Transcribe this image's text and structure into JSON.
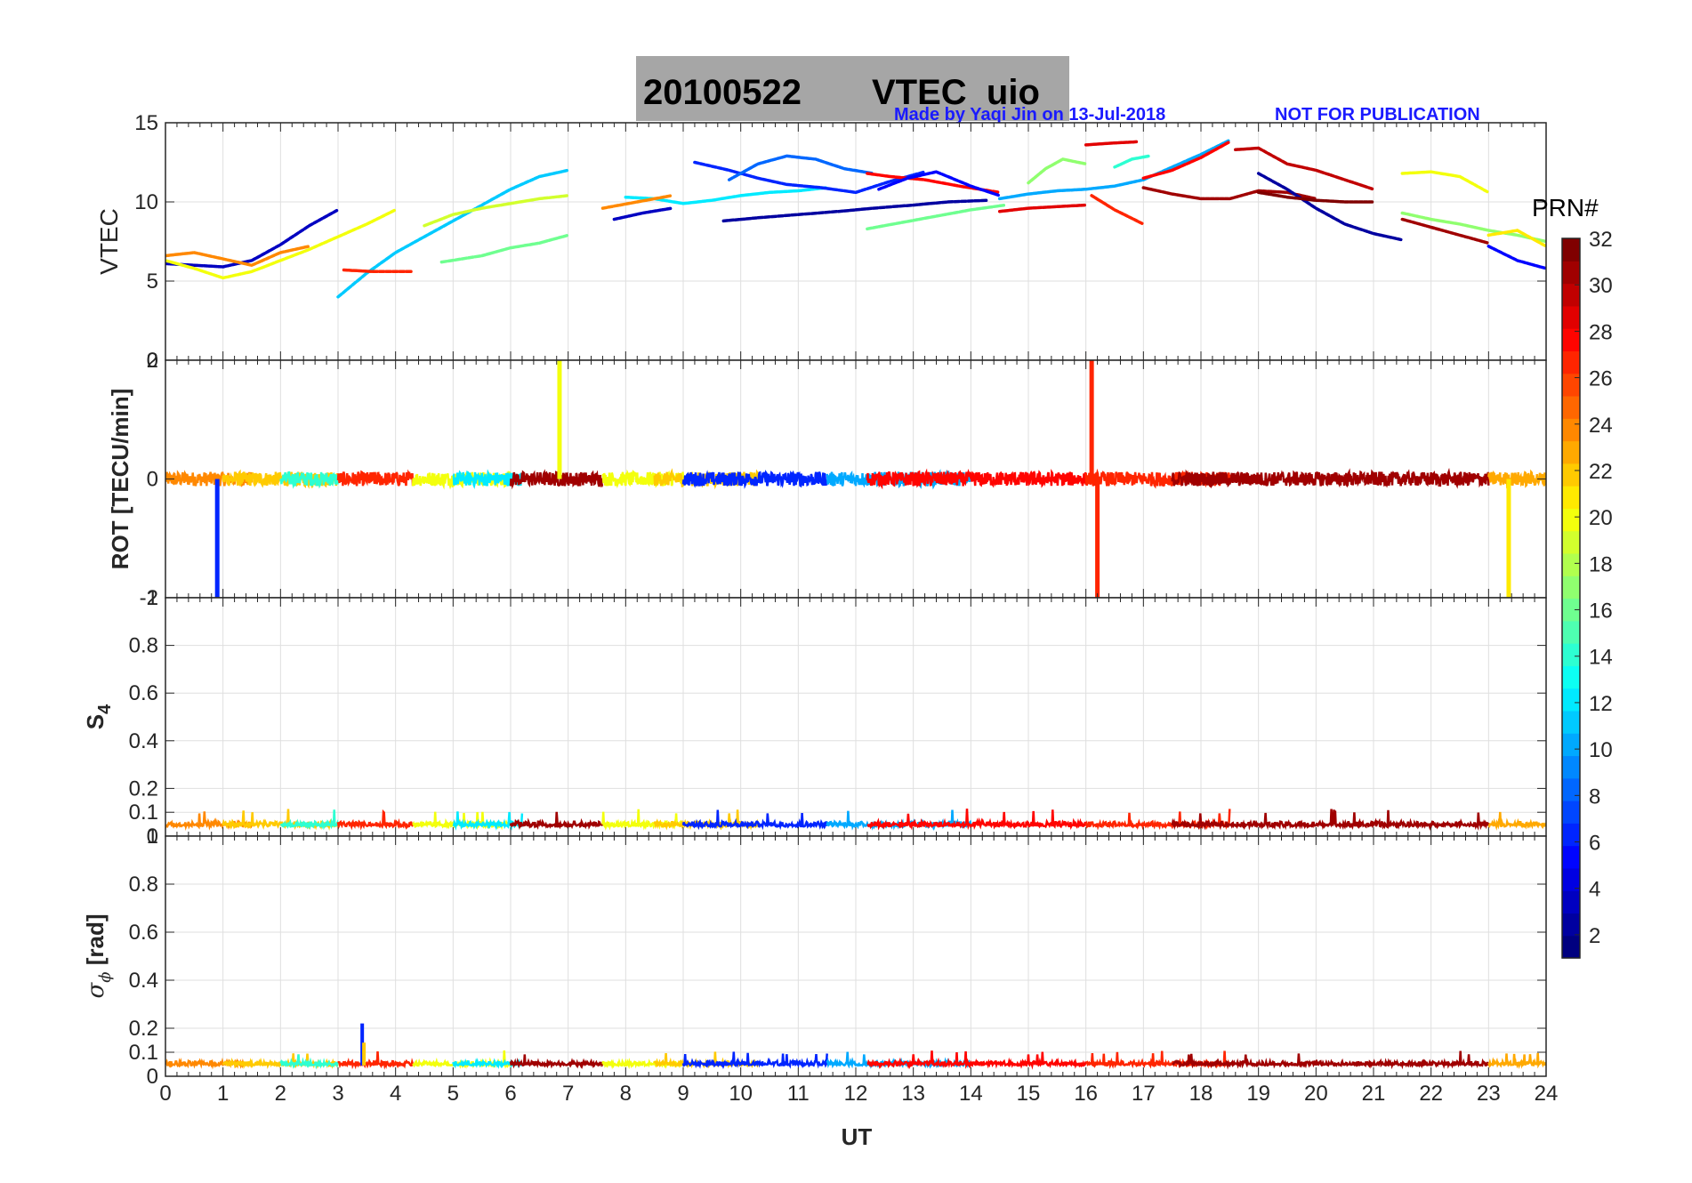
{
  "header": {
    "date": "20100522",
    "title": "VTEC  uio",
    "credit_left": "Made by Yaqi Jin on 13-Jul-2018",
    "credit_right": "NOT FOR PUBLICATION"
  },
  "colorbar": {
    "title": "PRN#",
    "ticks": [
      "2",
      "4",
      "6",
      "8",
      "10",
      "12",
      "14",
      "16",
      "18",
      "20",
      "22",
      "24",
      "26",
      "28",
      "30",
      "32"
    ],
    "range": [
      1,
      32
    ],
    "colormap": "jet",
    "levels": 32
  },
  "chart_data": [
    {
      "type": "scatter",
      "panel": "vtec",
      "ylabel": "VTEC",
      "xlim": [
        0,
        24
      ],
      "ylim": [
        0,
        15
      ],
      "yticks": [
        "0",
        "5",
        "10",
        "15"
      ],
      "grid": true,
      "series": [
        {
          "prn": 3,
          "x": [
            0,
            0.5,
            1.0,
            1.5,
            2.0,
            2.5,
            3.0
          ],
          "y": [
            6.1,
            6.0,
            5.9,
            6.3,
            7.3,
            8.5,
            9.5
          ]
        },
        {
          "prn": 20,
          "x": [
            0,
            0.5,
            1.0,
            1.5,
            2.0,
            2.5,
            3.0,
            3.5,
            4.0
          ],
          "y": [
            6.3,
            5.8,
            5.2,
            5.6,
            6.3,
            7.0,
            7.8,
            8.6,
            9.5
          ]
        },
        {
          "prn": 24,
          "x": [
            0,
            0.5,
            1.0,
            1.5,
            2.0,
            2.5
          ],
          "y": [
            6.6,
            6.8,
            6.4,
            6.0,
            6.8,
            7.2
          ]
        },
        {
          "prn": 11,
          "x": [
            3.0,
            3.5,
            4.0,
            4.5,
            5.0,
            5.5,
            6.0,
            6.5,
            7.0
          ],
          "y": [
            4.0,
            5.5,
            6.8,
            7.8,
            8.8,
            9.8,
            10.8,
            11.6,
            12.0
          ]
        },
        {
          "prn": 19,
          "x": [
            4.5,
            5.0,
            5.5,
            6.0,
            6.5,
            7.0
          ],
          "y": [
            8.5,
            9.2,
            9.6,
            9.9,
            10.2,
            10.4
          ]
        },
        {
          "prn": 16,
          "x": [
            4.8,
            5.5,
            6.0,
            6.5,
            7.0
          ],
          "y": [
            6.2,
            6.6,
            7.1,
            7.4,
            7.9
          ]
        },
        {
          "prn": 27,
          "x": [
            3.1,
            3.6,
            4.3
          ],
          "y": [
            5.7,
            5.6,
            5.6
          ]
        },
        {
          "prn": 12,
          "x": [
            8.0,
            8.5,
            9.0,
            9.5,
            10.0,
            10.5,
            11.0,
            11.5
          ],
          "y": [
            10.3,
            10.2,
            9.9,
            10.1,
            10.4,
            10.6,
            10.7,
            10.9
          ]
        },
        {
          "prn": 6,
          "x": [
            9.2,
            9.8,
            10.3,
            10.8,
            11.4,
            12.0,
            12.6,
            13.2
          ],
          "y": [
            12.5,
            12.0,
            11.5,
            11.1,
            10.9,
            10.6,
            11.3,
            11.9
          ]
        },
        {
          "prn": 8,
          "x": [
            9.8,
            10.3,
            10.8,
            11.3,
            11.8,
            12.3
          ],
          "y": [
            11.4,
            12.4,
            12.9,
            12.7,
            12.1,
            11.8
          ]
        },
        {
          "prn": 2,
          "x": [
            9.7,
            10.3,
            11.0,
            11.7,
            12.3,
            13.0,
            13.6,
            14.3
          ],
          "y": [
            8.8,
            9.0,
            9.2,
            9.4,
            9.6,
            9.8,
            10.0,
            10.1
          ]
        },
        {
          "prn": 24,
          "x": [
            7.6,
            8.2,
            8.8
          ],
          "y": [
            9.6,
            10.0,
            10.4
          ]
        },
        {
          "prn": 3,
          "x": [
            7.8,
            8.3,
            8.8
          ],
          "y": [
            8.9,
            9.3,
            9.6
          ]
        },
        {
          "prn": 16,
          "x": [
            12.2,
            12.8,
            13.4,
            14.0,
            14.6
          ],
          "y": [
            8.3,
            8.7,
            9.1,
            9.5,
            9.8
          ]
        },
        {
          "prn": 28,
          "x": [
            12.2,
            12.6,
            13.2,
            13.8,
            14.5
          ],
          "y": [
            11.8,
            11.6,
            11.4,
            11.0,
            10.6
          ]
        },
        {
          "prn": 5,
          "x": [
            12.4,
            12.9,
            13.4,
            14.0,
            14.5
          ],
          "y": [
            10.8,
            11.5,
            11.9,
            11.0,
            10.4
          ]
        },
        {
          "prn": 29,
          "x": [
            14.5,
            15.0,
            15.5,
            16.0
          ],
          "y": [
            9.4,
            9.6,
            9.7,
            9.8
          ]
        },
        {
          "prn": 10,
          "x": [
            14.5,
            15.0,
            15.5,
            16.0,
            16.5,
            17.0,
            17.5,
            18.0,
            18.5
          ],
          "y": [
            10.2,
            10.5,
            10.7,
            10.8,
            11.0,
            11.4,
            12.2,
            13.0,
            13.9
          ]
        },
        {
          "prn": 17,
          "x": [
            15.0,
            15.3,
            15.6,
            16.0
          ],
          "y": [
            11.2,
            12.1,
            12.7,
            12.4
          ]
        },
        {
          "prn": 29,
          "x": [
            16.0,
            16.4,
            16.9
          ],
          "y": [
            13.6,
            13.7,
            13.8
          ]
        },
        {
          "prn": 27,
          "x": [
            16.1,
            16.5,
            17.0
          ],
          "y": [
            10.4,
            9.5,
            8.6
          ]
        },
        {
          "prn": 14,
          "x": [
            16.5,
            16.8,
            17.1
          ],
          "y": [
            12.2,
            12.7,
            12.9
          ]
        },
        {
          "prn": 28,
          "x": [
            17.0,
            17.5,
            18.0,
            18.5
          ],
          "y": [
            11.5,
            12.0,
            12.8,
            13.8
          ]
        },
        {
          "prn": 31,
          "x": [
            17.0,
            17.5,
            18.0,
            18.5,
            19.0,
            19.5,
            20.0
          ],
          "y": [
            10.9,
            10.5,
            10.2,
            10.2,
            10.7,
            10.6,
            10.2
          ]
        },
        {
          "prn": 30,
          "x": [
            18.6,
            19.0,
            19.5,
            20.0,
            20.5,
            21.0
          ],
          "y": [
            13.3,
            13.4,
            12.4,
            12.0,
            11.4,
            10.8
          ]
        },
        {
          "prn": 2,
          "x": [
            19.0,
            19.5,
            20.0,
            20.5,
            21.0,
            21.5
          ],
          "y": [
            11.8,
            10.8,
            9.6,
            8.6,
            8.0,
            7.6
          ]
        },
        {
          "prn": 32,
          "x": [
            19.0,
            19.5,
            20.0,
            20.5,
            21.0
          ],
          "y": [
            10.6,
            10.3,
            10.1,
            10.0,
            10.0
          ]
        },
        {
          "prn": 20,
          "x": [
            21.5,
            22.0,
            22.5,
            23.0
          ],
          "y": [
            11.8,
            11.9,
            11.6,
            10.6
          ]
        },
        {
          "prn": 31,
          "x": [
            21.5,
            22.0,
            22.5,
            23.0
          ],
          "y": [
            8.9,
            8.4,
            7.9,
            7.4
          ]
        },
        {
          "prn": 17,
          "x": [
            21.5,
            22.0,
            22.5,
            23.0,
            23.5,
            24.0
          ],
          "y": [
            9.3,
            8.9,
            8.6,
            8.2,
            7.9,
            7.5
          ]
        },
        {
          "prn": 5,
          "x": [
            23.0,
            23.5,
            24.0
          ],
          "y": [
            7.2,
            6.3,
            5.8
          ]
        },
        {
          "prn": 21,
          "x": [
            23.0,
            23.5,
            24.0
          ],
          "y": [
            7.9,
            8.2,
            7.2
          ]
        }
      ]
    },
    {
      "type": "line",
      "panel": "rot",
      "ylabel": "ROT [TECU/min]",
      "xlim": [
        0,
        24
      ],
      "ylim": [
        -2,
        2
      ],
      "yticks": [
        "-2",
        "0",
        "2"
      ],
      "grid": true,
      "baseline": 0,
      "noise_amplitude": 0.12,
      "segments": [
        {
          "prn": 24,
          "x": [
            0,
            1.5
          ]
        },
        {
          "prn": 22,
          "x": [
            1.0,
            3.0
          ]
        },
        {
          "prn": 14,
          "x": [
            2.0,
            3.0
          ]
        },
        {
          "prn": 27,
          "x": [
            3.0,
            4.3
          ]
        },
        {
          "prn": 20,
          "x": [
            4.3,
            6.0
          ]
        },
        {
          "prn": 12,
          "x": [
            5.0,
            6.2
          ]
        },
        {
          "prn": 31,
          "x": [
            6.0,
            7.6
          ]
        },
        {
          "prn": 20,
          "x": [
            7.6,
            9.0
          ]
        },
        {
          "prn": 22,
          "x": [
            8.5,
            10.3
          ]
        },
        {
          "prn": 6,
          "x": [
            9.0,
            11.5
          ]
        },
        {
          "prn": 10,
          "x": [
            11.5,
            14.0
          ]
        },
        {
          "prn": 28,
          "x": [
            12.2,
            16.0
          ]
        },
        {
          "prn": 27,
          "x": [
            16.0,
            18.5
          ]
        },
        {
          "prn": 31,
          "x": [
            17.5,
            19.0
          ]
        },
        {
          "prn": 31,
          "x": [
            19.0,
            23.0
          ]
        },
        {
          "prn": 23,
          "x": [
            23.0,
            24.0
          ]
        }
      ],
      "spikes": [
        {
          "prn": 6,
          "x": 0.9,
          "y": -2
        },
        {
          "prn": 20,
          "x": 6.85,
          "y": 2
        },
        {
          "prn": 27,
          "x": 16.1,
          "y": 2
        },
        {
          "prn": 27,
          "x": 16.2,
          "y": -2
        },
        {
          "prn": 21,
          "x": 23.35,
          "y": -2
        }
      ]
    },
    {
      "type": "line",
      "panel": "s4",
      "ylabel": "S4",
      "xlim": [
        0,
        24
      ],
      "ylim": [
        0,
        1
      ],
      "yticks": [
        "0",
        "0.1",
        "0.2",
        "0.4",
        "0.6",
        "0.8",
        "1"
      ],
      "grid": true,
      "baseline": 0.04,
      "noise_amplitude": 0.03
    },
    {
      "type": "line",
      "panel": "sigma_phi",
      "ylabel": "σϕ [rad]",
      "xlim": [
        0,
        24
      ],
      "ylim": [
        0,
        1
      ],
      "yticks": [
        "0",
        "0.1",
        "0.2",
        "0.4",
        "0.6",
        "0.8",
        "1"
      ],
      "xticks": [
        "0",
        "1",
        "2",
        "3",
        "4",
        "5",
        "6",
        "7",
        "8",
        "9",
        "10",
        "11",
        "12",
        "13",
        "14",
        "15",
        "16",
        "17",
        "18",
        "19",
        "20",
        "21",
        "22",
        "23",
        "24"
      ],
      "xlabel": "UT",
      "grid": true,
      "baseline": 0.045,
      "noise_amplitude": 0.025,
      "spikes": [
        {
          "prn": 6,
          "x": 3.42,
          "y": 0.22
        },
        {
          "prn": 22,
          "x": 3.45,
          "y": 0.14
        }
      ]
    }
  ]
}
